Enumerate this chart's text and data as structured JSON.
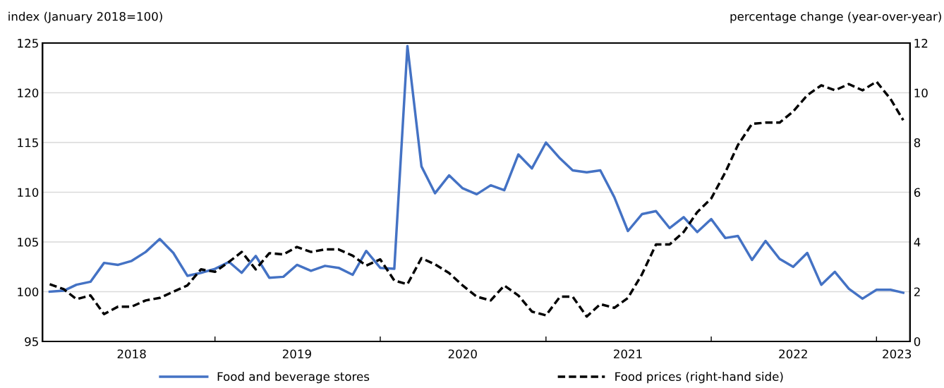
{
  "chart_data": {
    "type": "line",
    "ylabel": "index (January 2018=100)",
    "y2label": "percentage change (year-over-year)",
    "x": [
      "2018-01",
      "2018-02",
      "2018-03",
      "2018-04",
      "2018-05",
      "2018-06",
      "2018-07",
      "2018-08",
      "2018-09",
      "2018-10",
      "2018-11",
      "2018-12",
      "2019-01",
      "2019-02",
      "2019-03",
      "2019-04",
      "2019-05",
      "2019-06",
      "2019-07",
      "2019-08",
      "2019-09",
      "2019-10",
      "2019-11",
      "2019-12",
      "2020-01",
      "2020-02",
      "2020-03",
      "2020-04",
      "2020-05",
      "2020-06",
      "2020-07",
      "2020-08",
      "2020-09",
      "2020-10",
      "2020-11",
      "2020-12",
      "2021-01",
      "2021-02",
      "2021-03",
      "2021-04",
      "2021-05",
      "2021-06",
      "2021-07",
      "2021-08",
      "2021-09",
      "2021-10",
      "2021-11",
      "2021-12",
      "2022-01",
      "2022-02",
      "2022-03",
      "2022-04",
      "2022-05",
      "2022-06",
      "2022-07",
      "2022-08",
      "2022-09",
      "2022-10",
      "2022-11",
      "2022-12",
      "2023-01",
      "2023-02",
      "2023-03"
    ],
    "series": [
      {
        "name": "Food and beverage stores",
        "color": "#4472c4",
        "line_style": "solid",
        "values": [
          100.0,
          100.1,
          100.7,
          101.0,
          102.9,
          102.7,
          103.1,
          104.0,
          105.3,
          103.9,
          101.6,
          101.9,
          102.3,
          103.0,
          101.9,
          103.6,
          101.4,
          101.5,
          102.7,
          102.1,
          102.6,
          102.4,
          101.7,
          104.1,
          102.4,
          102.3,
          124.7,
          112.6,
          109.9,
          111.7,
          110.4,
          109.8,
          110.7,
          110.2,
          113.8,
          112.4,
          115.0,
          113.4,
          112.2,
          112.0,
          112.2,
          109.5,
          106.1,
          107.8,
          108.1,
          106.4,
          107.5,
          106.0,
          107.3,
          105.4,
          105.6,
          103.2,
          105.1,
          103.3,
          102.5,
          103.9,
          100.7,
          102.0,
          100.3,
          99.3,
          100.2,
          100.2,
          99.9
        ]
      },
      {
        "name": "Food prices (right-hand side)",
        "color": "#000000",
        "line_style": "dashed",
        "axis": "y2",
        "values": [
          2.3,
          2.1,
          1.7,
          1.85,
          1.1,
          1.4,
          1.4,
          1.65,
          1.75,
          2.0,
          2.25,
          2.9,
          2.8,
          3.2,
          3.6,
          2.9,
          3.55,
          3.5,
          3.8,
          3.6,
          3.7,
          3.7,
          3.45,
          3.05,
          3.3,
          2.45,
          2.3,
          3.35,
          3.1,
          2.75,
          2.25,
          1.8,
          1.65,
          2.25,
          1.85,
          1.2,
          1.05,
          1.8,
          1.8,
          1.0,
          1.5,
          1.35,
          1.75,
          2.7,
          3.9,
          3.9,
          4.4,
          5.2,
          5.75,
          6.8,
          7.9,
          8.75,
          8.8,
          8.8,
          9.25,
          9.9,
          10.3,
          10.1,
          10.35,
          10.1,
          10.45,
          9.75,
          8.9
        ]
      }
    ],
    "xlim": [
      "2017-12-16",
      "2023-03-16"
    ],
    "xticks": [
      {
        "value": "2018-07-01",
        "label": "2018"
      },
      {
        "value": "2019-01-01",
        "label": null
      },
      {
        "value": "2019-07-01",
        "label": "2019"
      },
      {
        "value": "2020-01-01",
        "label": null
      },
      {
        "value": "2020-07-01",
        "label": "2020"
      },
      {
        "value": "2021-01-01",
        "label": null
      },
      {
        "value": "2021-07-01",
        "label": "2021"
      },
      {
        "value": "2022-01-01",
        "label": null
      },
      {
        "value": "2022-07-01",
        "label": "2022"
      },
      {
        "value": "2023-01-01",
        "label": null
      },
      {
        "value": "2023-02-15",
        "label": "2023"
      }
    ],
    "ylim": [
      95,
      125
    ],
    "yticks": [
      95,
      100,
      105,
      110,
      115,
      120,
      125
    ],
    "y2lim": [
      0,
      12
    ],
    "y2ticks": [
      0,
      2,
      4,
      6,
      8,
      10,
      12
    ],
    "grid": "y",
    "legend": "bottom"
  }
}
